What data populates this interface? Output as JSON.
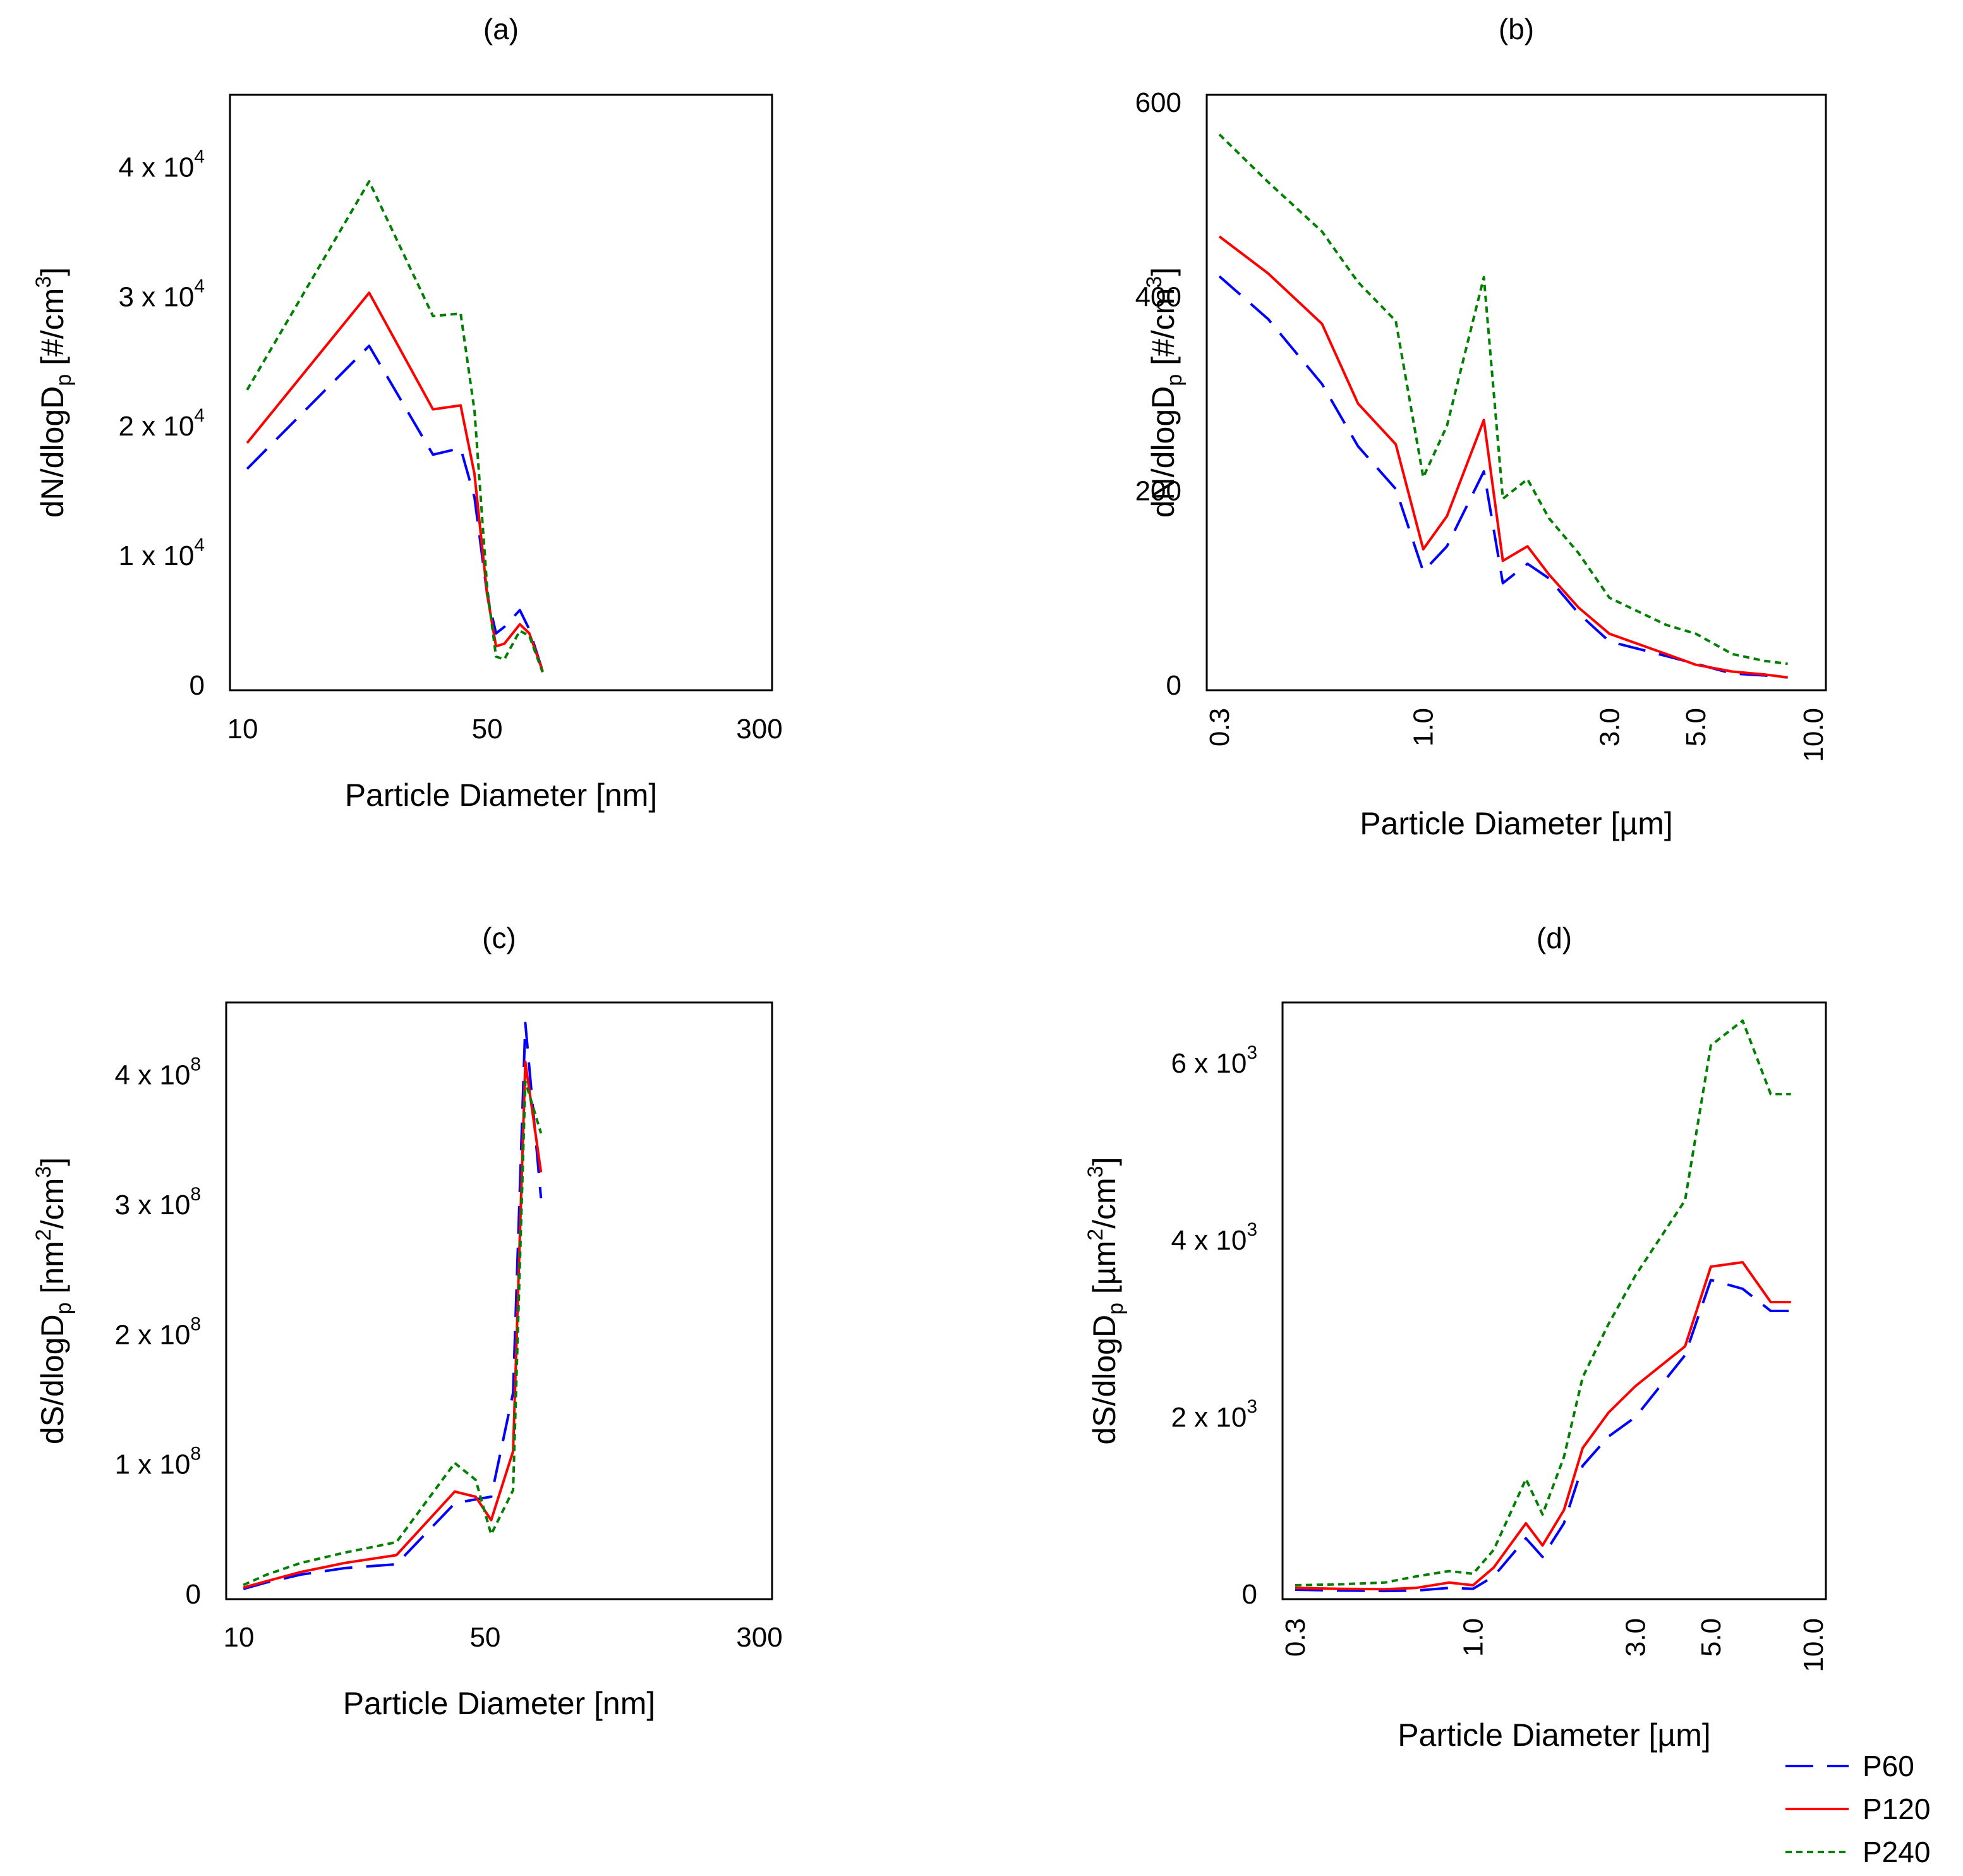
{
  "figure": {
    "background": "#ffffff",
    "series_styles": [
      {
        "name": "P60",
        "color": "#0000ff",
        "dash": "44,22"
      },
      {
        "name": "P120",
        "color": "#ff0000",
        "dash": ""
      },
      {
        "name": "P240",
        "color": "#008000",
        "dash": "10,7"
      }
    ],
    "legend": {
      "placement": "bottom-right",
      "items": [
        {
          "label": "P60",
          "color": "#0000ff"
        },
        {
          "label": "P120",
          "color": "#ff0000"
        },
        {
          "label": "P240",
          "color": "#008000"
        }
      ]
    }
  },
  "chart_data": [
    {
      "panel": "(a)",
      "type": "line",
      "xscale": "log",
      "xlabel": "Particle Diameter [nm]",
      "ylabel_parts": {
        "base": "dN/dlogD",
        "sub": "p",
        "unit_pre": " [#/cm",
        "unit_sup": "3",
        "unit_post": "]"
      },
      "xlim": [
        10,
        300
      ],
      "ylim": [
        0,
        45000.0
      ],
      "xticks": [
        {
          "v": 10,
          "label": "10"
        },
        {
          "v": 50,
          "label": "50"
        },
        {
          "v": 300,
          "label": "300"
        }
      ],
      "yticks": [
        {
          "v": 0,
          "label": "0"
        },
        {
          "v": 10000,
          "label": "1 x 10",
          "sup": "4"
        },
        {
          "v": 20000,
          "label": "2 x 10",
          "sup": "4"
        },
        {
          "v": 30000,
          "label": "3 x 10",
          "sup": "4"
        },
        {
          "v": 40000,
          "label": "4 x 10",
          "sup": "4"
        }
      ],
      "series": [
        {
          "name": "P60",
          "x": [
            10.3,
            23,
            35,
            42,
            46,
            50,
            53,
            56,
            62,
            66,
            72
          ],
          "y": [
            16700,
            26200,
            17800,
            18300,
            14500,
            7000,
            4000,
            4500,
            5800,
            4300,
            1100
          ]
        },
        {
          "name": "P120",
          "x": [
            10.3,
            23,
            35,
            42,
            46,
            50,
            53,
            56,
            62,
            66,
            72
          ],
          "y": [
            18700,
            30300,
            21300,
            21600,
            16300,
            7000,
            3000,
            3200,
            4700,
            4000,
            1100
          ]
        },
        {
          "name": "P240",
          "x": [
            10.3,
            23,
            35,
            42,
            46,
            50,
            53,
            56,
            62,
            66,
            72
          ],
          "y": [
            22800,
            38900,
            28500,
            28700,
            21200,
            7500,
            2200,
            2000,
            4200,
            3800,
            1000
          ]
        }
      ]
    },
    {
      "panel": "(b)",
      "type": "line",
      "xscale": "log",
      "xlabel": "Particle Diameter [µm]",
      "ylabel_parts": {
        "base": "dN/dlogD",
        "sub": "p",
        "unit_pre": " [#/cm",
        "unit_sup": "3",
        "unit_post": "]"
      },
      "xlim": [
        0.3,
        10
      ],
      "ylim": [
        0,
        600
      ],
      "xtick_rotation": -90,
      "xticks": [
        {
          "v": 0.3,
          "label": "0.3"
        },
        {
          "v": 1.0,
          "label": "1.0"
        },
        {
          "v": 3.0,
          "label": "3.0"
        },
        {
          "v": 5.0,
          "label": "5.0"
        },
        {
          "v": 10.0,
          "label": "10.0"
        }
      ],
      "yticks": [
        {
          "v": 0,
          "label": "0"
        },
        {
          "v": 200,
          "label": "200"
        },
        {
          "v": 400,
          "label": "400"
        },
        {
          "v": 600,
          "label": "600"
        }
      ],
      "series": [
        {
          "name": "P60",
          "x": [
            0.3,
            0.4,
            0.55,
            0.68,
            0.85,
            1.0,
            1.15,
            1.43,
            1.6,
            1.85,
            2.1,
            2.5,
            3.0,
            4.2,
            5.0,
            6.2,
            7.5,
            8.6
          ],
          "y": [
            421,
            377,
            310,
            246,
            202,
            117,
            143,
            220,
            105,
            125,
            110,
            74,
            45,
            30,
            22,
            12,
            10,
            8
          ]
        },
        {
          "name": "P120",
          "x": [
            0.3,
            0.4,
            0.55,
            0.68,
            0.85,
            1.0,
            1.15,
            1.43,
            1.6,
            1.85,
            2.1,
            2.5,
            3.0,
            4.2,
            5.0,
            6.2,
            7.5,
            8.6
          ],
          "y": [
            462,
            424,
            372,
            290,
            248,
            140,
            174,
            273,
            128,
            143,
            114,
            80,
            53,
            32,
            21,
            14,
            11,
            8
          ]
        },
        {
          "name": "P240",
          "x": [
            0.3,
            0.4,
            0.55,
            0.68,
            0.85,
            1.0,
            1.15,
            1.43,
            1.6,
            1.85,
            2.1,
            2.5,
            3.0,
            4.2,
            5.0,
            6.2,
            7.5,
            8.6
          ],
          "y": [
            567,
            518,
            467,
            415,
            375,
            214,
            267,
            420,
            192,
            212,
            172,
            136,
            90,
            62,
            53,
            32,
            25,
            22
          ]
        }
      ]
    },
    {
      "panel": "(c)",
      "type": "line",
      "xscale": "log",
      "xlabel": "Particle Diameter [nm]",
      "ylabel_parts": {
        "base": "dS/dlogD",
        "sub": "p",
        "unit_pre": " [nm",
        "unit_sup": "2",
        "unit_post": "/cm",
        "unit_sup2": "3",
        "unit_end": "]"
      },
      "xlim": [
        10,
        300
      ],
      "ylim": [
        0,
        450000000.0
      ],
      "xticks": [
        {
          "v": 10,
          "label": "10"
        },
        {
          "v": 50,
          "label": "50"
        },
        {
          "v": 300,
          "label": "300"
        }
      ],
      "yticks": [
        {
          "v": 0,
          "label": "0"
        },
        {
          "v": 100000000,
          "label": "1 x 10",
          "sup": "8"
        },
        {
          "v": 200000000,
          "label": "2 x 10",
          "sup": "8"
        },
        {
          "v": 300000000,
          "label": "3 x 10",
          "sup": "8"
        },
        {
          "v": 400000000,
          "label": "4 x 10",
          "sup": "8"
        }
      ],
      "series": [
        {
          "name": "P60",
          "x": [
            10.3,
            12,
            15,
            20,
            28,
            41,
            47,
            52,
            60,
            65,
            72
          ],
          "y": [
            4000000,
            9000000,
            15000000,
            20000000,
            23000000,
            70000000,
            73000000,
            75000000,
            155000000,
            440000000,
            305000000
          ]
        },
        {
          "name": "P120",
          "x": [
            10.3,
            12,
            15,
            20,
            28,
            41,
            47,
            52,
            60,
            65,
            72
          ],
          "y": [
            5000000,
            10000000,
            17000000,
            24000000,
            30000000,
            79000000,
            75000000,
            57000000,
            110000000,
            410000000,
            325000000
          ]
        },
        {
          "name": "P240",
          "x": [
            10.3,
            12,
            15,
            20,
            28,
            41,
            47,
            52,
            60,
            65,
            72
          ],
          "y": [
            7000000,
            15000000,
            24000000,
            32000000,
            40000000,
            101000000,
            88000000,
            46000000,
            80000000,
            395000000,
            355000000
          ]
        }
      ]
    },
    {
      "panel": "(d)",
      "type": "line",
      "xscale": "log",
      "xlabel": "Particle Diameter [µm]",
      "ylabel_parts": {
        "base": "dS/dlogD",
        "sub": "p",
        "unit_pre": " [µm",
        "unit_sup": "2",
        "unit_post": "/cm",
        "unit_sup2": "3",
        "unit_end": "]"
      },
      "xlim": [
        0.3,
        10
      ],
      "ylim": [
        0,
        6600
      ],
      "xtick_rotation": -90,
      "xticks": [
        {
          "v": 0.3,
          "label": "0.3"
        },
        {
          "v": 1.0,
          "label": "1.0"
        },
        {
          "v": 3.0,
          "label": "3.0"
        },
        {
          "v": 5.0,
          "label": "5.0"
        },
        {
          "v": 10.0,
          "label": "10.0"
        }
      ],
      "yticks": [
        {
          "v": 0,
          "label": "0"
        },
        {
          "v": 2000,
          "label": "2 x 10",
          "sup": "3"
        },
        {
          "v": 4000,
          "label": "4 x 10",
          "sup": "3"
        },
        {
          "v": 6000,
          "label": "6 x 10",
          "sup": "3"
        }
      ],
      "series": [
        {
          "name": "P60",
          "x": [
            0.3,
            0.4,
            0.55,
            0.68,
            0.85,
            1.0,
            1.15,
            1.43,
            1.6,
            1.85,
            2.1,
            2.5,
            3.0,
            4.2,
            5.0,
            6.2,
            7.5,
            8.6
          ],
          "y": [
            50,
            40,
            35,
            40,
            70,
            60,
            200,
            630,
            420,
            800,
            1450,
            1780,
            2000,
            2700,
            3550,
            3450,
            3200,
            3200
          ]
        },
        {
          "name": "P120",
          "x": [
            0.3,
            0.4,
            0.55,
            0.68,
            0.85,
            1.0,
            1.15,
            1.43,
            1.6,
            1.85,
            2.1,
            2.5,
            3.0,
            4.2,
            5.0,
            6.2,
            7.5,
            8.6
          ],
          "y": [
            70,
            60,
            55,
            70,
            130,
            100,
            300,
            800,
            550,
            950,
            1650,
            2050,
            2350,
            2800,
            3700,
            3750,
            3300,
            3300
          ]
        },
        {
          "name": "P240",
          "x": [
            0.3,
            0.4,
            0.55,
            0.68,
            0.85,
            1.0,
            1.15,
            1.43,
            1.6,
            1.85,
            2.1,
            2.5,
            3.0,
            4.2,
            5.0,
            6.2,
            7.5,
            8.6
          ],
          "y": [
            100,
            110,
            130,
            200,
            260,
            230,
            500,
            1300,
            900,
            1550,
            2450,
            3050,
            3600,
            4450,
            6200,
            6480,
            5650,
            5650
          ]
        }
      ]
    }
  ]
}
